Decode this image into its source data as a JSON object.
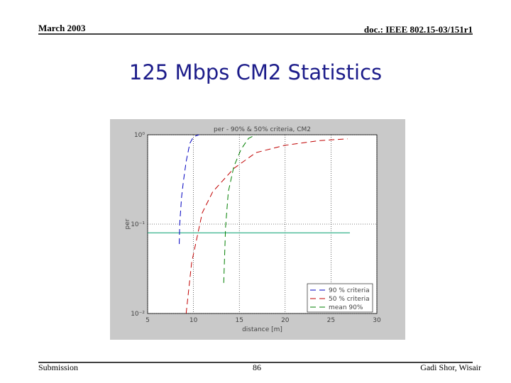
{
  "header": {
    "date": "March 2003",
    "doc": "doc.: IEEE 802.15-03/151r1"
  },
  "title": "125 Mbps CM2 Statistics",
  "footer": {
    "left": "Submission",
    "page": "86",
    "right": "Gadi Shor, Wisair"
  },
  "chart_data": {
    "type": "line",
    "title": "per - 90% & 50% criteria, CM2",
    "x_label": "distance [m]",
    "y_label": "per",
    "log_y": true,
    "grid": true,
    "legend": "lower right",
    "xlim": [
      5,
      30
    ],
    "xticks": [
      5,
      10,
      15,
      20,
      25,
      30
    ],
    "ylim": [
      0.01,
      1
    ],
    "yticks": [
      {
        "value": 0.01,
        "label": "10⁻²"
      },
      {
        "value": 0.1,
        "label": "10⁻¹"
      },
      {
        "value": 1,
        "label": "10⁰"
      }
    ],
    "reference_line": {
      "value": 0.08,
      "color": "#009f6f"
    },
    "series": [
      {
        "name": "90 % criteria",
        "color": "#0000c0",
        "dash": "8,5",
        "x": [
          8.45,
          8.5,
          8.7,
          8.9,
          9.2,
          9.6,
          10.0,
          10.6
        ],
        "values": [
          0.06,
          0.1,
          0.2,
          0.3,
          0.5,
          0.8,
          0.95,
          1.0
        ]
      },
      {
        "name": "50 % criteria",
        "color": "#c00000",
        "dash": "8,5",
        "x": [
          9.2,
          9.8,
          10.96,
          12.1,
          14.4,
          16.8,
          19.9,
          23.7,
          26.8
        ],
        "values": [
          0.01,
          0.037,
          0.134,
          0.23,
          0.42,
          0.63,
          0.76,
          0.86,
          0.9
        ]
      },
      {
        "name": "mean 90%",
        "color": "#007f00",
        "dash": "8,5",
        "x": [
          13.3,
          13.5,
          13.8,
          14.4,
          15.2,
          16.0,
          16.8
        ],
        "values": [
          0.022,
          0.093,
          0.23,
          0.44,
          0.69,
          0.91,
          1.0
        ]
      }
    ]
  }
}
